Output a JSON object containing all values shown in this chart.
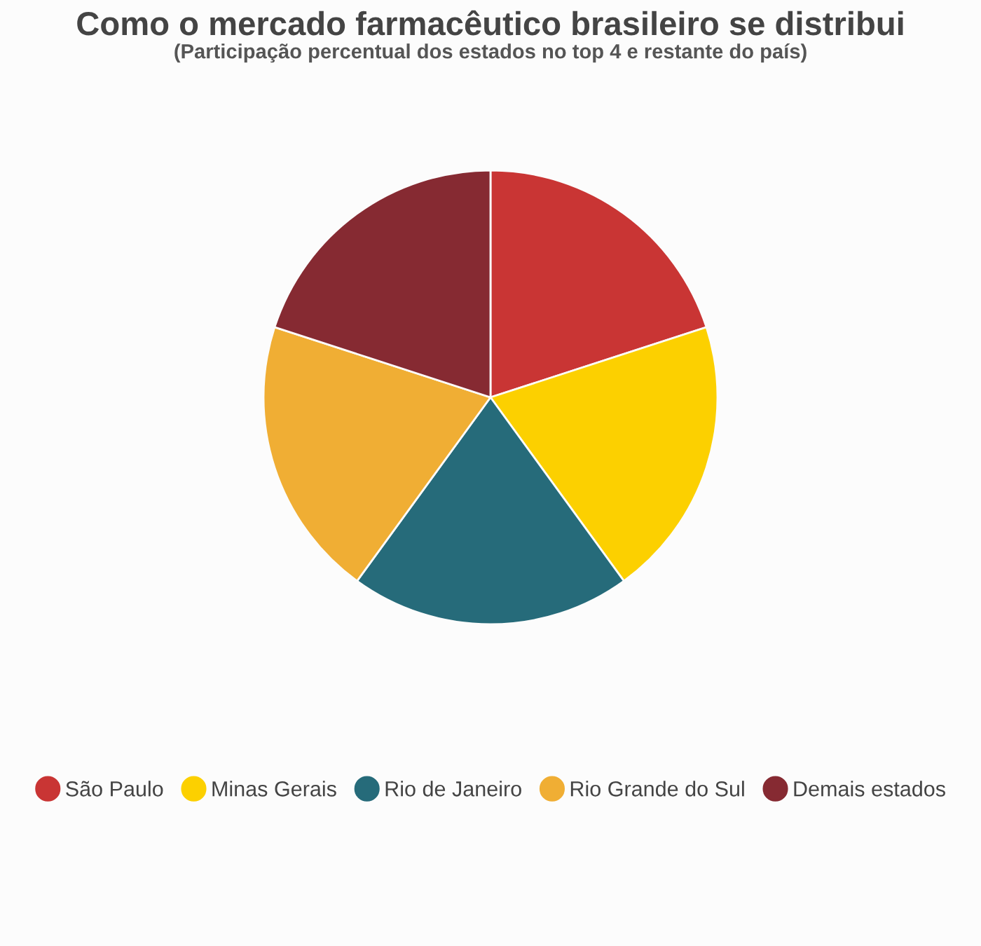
{
  "chart_data": {
    "type": "pie",
    "title": "Como o mercado farmacêutico brasileiro se distribui",
    "subtitle": "(Participação percentual dos estados no top 4 e restante do país)",
    "categories": [
      "São Paulo",
      "Minas Gerais",
      "Rio de Janeiro",
      "Rio Grande do Sul",
      "Demais estados"
    ],
    "values": [
      20,
      20,
      20,
      20,
      20
    ],
    "colors": [
      "#c93534",
      "#fcd000",
      "#266b7a",
      "#f0ae34",
      "#862a32"
    ],
    "legend": "bottom"
  }
}
